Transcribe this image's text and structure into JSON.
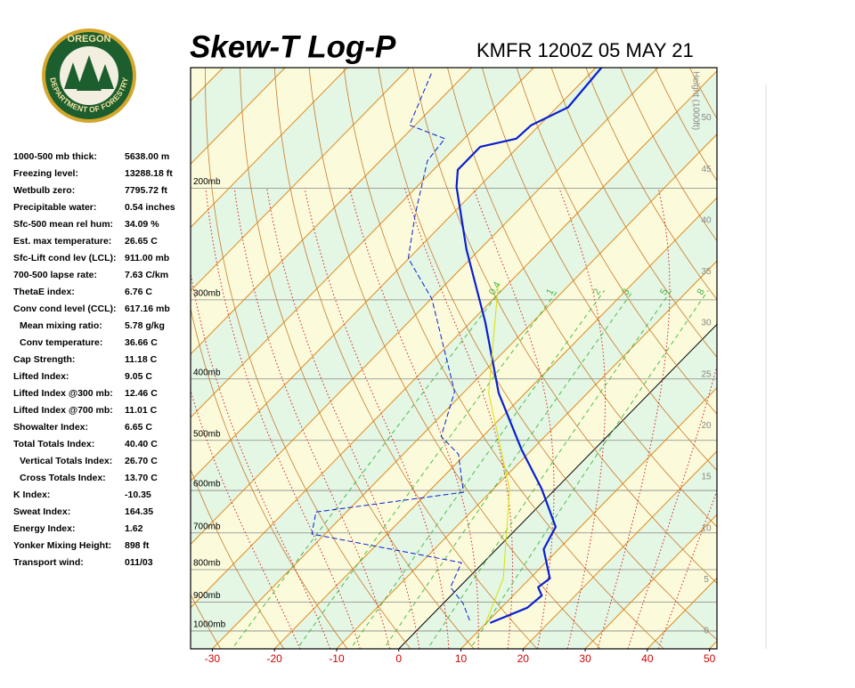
{
  "logo": {
    "top": "OREGON",
    "bottom": "DEPARTMENT OF FORESTRY"
  },
  "indices": [
    [
      "1000-500 mb thick:",
      "5638.00 m"
    ],
    [
      "Freezing level:",
      "13288.18 ft"
    ],
    [
      "Wetbulb zero:",
      "7795.72 ft"
    ],
    [
      "Precipitable water:",
      "0.54 inches"
    ],
    [
      "Sfc-500 mean rel hum:",
      "34.09 %"
    ],
    [
      "Est. max temperature:",
      "26.65 C"
    ],
    [
      "Sfc-Lift cond lev (LCL):",
      "911.00 mb"
    ],
    [
      "700-500 lapse rate:",
      "7.63 C/km"
    ],
    [
      "ThetaE index:",
      "6.76 C"
    ],
    [
      "Conv cond level (CCL):",
      "617.16 mb"
    ],
    [
      "Mean mixing ratio:",
      "5.78 g/kg"
    ],
    [
      "Conv temperature:",
      "36.66 C"
    ],
    [
      "Cap Strength:",
      "11.18 C"
    ],
    [
      "Lifted Index:",
      "9.05 C"
    ],
    [
      "Lifted Index @300 mb:",
      "12.46 C"
    ],
    [
      "Lifted Index @700 mb:",
      "11.01 C"
    ],
    [
      "Showalter Index:",
      "6.65 C"
    ],
    [
      "Total Totals Index:",
      "40.40 C"
    ],
    [
      "Vertical Totals Index:",
      "26.70 C"
    ],
    [
      "Cross Totals Index:",
      "13.70 C"
    ],
    [
      "K Index:",
      "-10.35"
    ],
    [
      "Sweat Index:",
      "164.35"
    ],
    [
      "Energy Index:",
      "1.62"
    ],
    [
      "Yonker Mixing Height:",
      "898 ft"
    ],
    [
      "Transport wind:",
      "011/03"
    ]
  ],
  "chart_data": {
    "type": "skew-t",
    "title": "Skew-T Log-P",
    "subtitle": "KMFR 1200Z 05 MAY 21",
    "height_label": "Height (1000ft)",
    "xlim": [
      -33.5,
      51.2
    ],
    "xticks": [
      -30,
      -20,
      -10,
      0,
      10,
      20,
      30,
      40,
      50
    ],
    "ylim": [
      1067,
      129
    ],
    "ylog": true,
    "yticks": [
      {
        "value": 1000,
        "label": "1000mb"
      },
      {
        "value": 900,
        "label": "900mb"
      },
      {
        "value": 800,
        "label": "800mb"
      },
      {
        "value": 700,
        "label": "700mb"
      },
      {
        "value": 600,
        "label": "600mb"
      },
      {
        "value": 500,
        "label": "500mb"
      },
      {
        "value": 400,
        "label": "400mb"
      },
      {
        "value": 300,
        "label": "300mb"
      },
      {
        "value": 200,
        "label": "200mb"
      }
    ],
    "height_ticks": [
      0,
      5,
      10,
      15,
      20,
      25,
      30,
      35,
      40,
      45,
      50
    ],
    "mixing_ratios": [
      0.4,
      1,
      2,
      3,
      5,
      8
    ],
    "series": [
      {
        "color": "#0a1fd0",
        "dash": false,
        "p": [
          971,
          919,
          879,
          853,
          826,
          743,
          685,
          596,
          517,
          421,
          325,
          250,
          199,
          187,
          172,
          167,
          159,
          149,
          129
        ],
        "values": [
          10.6,
          14.2,
          14.6,
          12.7,
          13.2,
          7.6,
          6.0,
          -2.3,
          -11.7,
          -24.3,
          -37.7,
          -52.1,
          -63.6,
          -66.1,
          -66.1,
          -61.6,
          -61.3,
          -58.2,
          -59.1
        ]
      },
      {
        "color": "#0a1fd0",
        "dash": true,
        "p": [
          962,
          905,
          853,
          780,
          703,
          649,
          604,
          526,
          493,
          419,
          299,
          258,
          220,
          181,
          167,
          159,
          131
        ],
        "values": [
          6.9,
          3.2,
          -1.4,
          -3.5,
          -32.1,
          -34.9,
          -14.3,
          -21.1,
          -26.7,
          -31.6,
          -49.9,
          -60.1,
          -65.9,
          -72.4,
          -73.1,
          -80.9,
          -85.7
        ]
      },
      {
        "color": "#dede00",
        "dash": false,
        "p": [
          971,
          826,
          598,
          421,
          283
        ],
        "values": [
          9.9,
          5.7,
          -7.3,
          -25.9,
          -41.6
        ]
      }
    ]
  }
}
